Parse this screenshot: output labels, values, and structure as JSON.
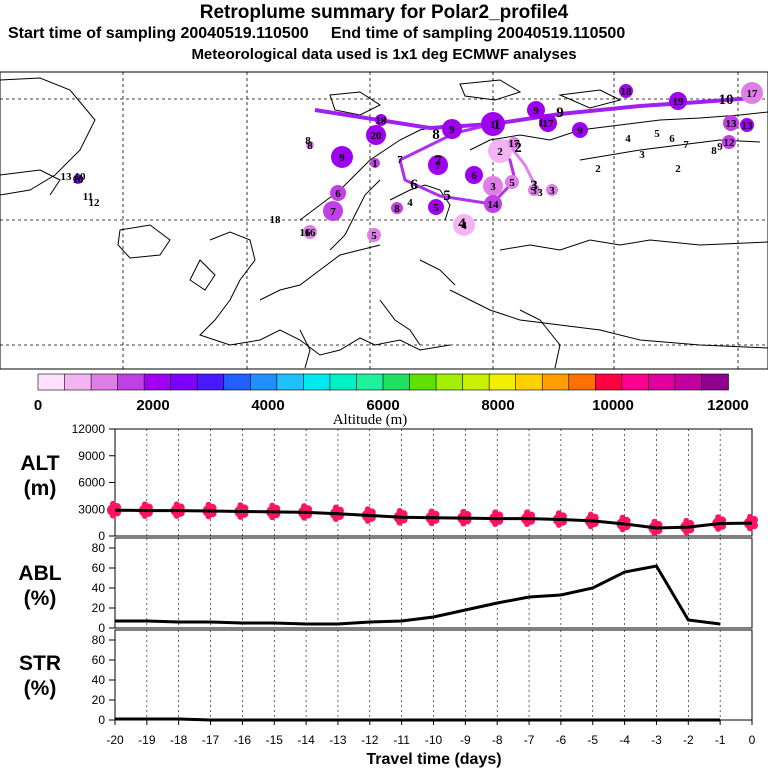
{
  "header": {
    "title": "Retroplume summary for Polar2_profile4",
    "start_label": "Start time of sampling 20040519.110500",
    "end_label": "End time of sampling 20040519.110500",
    "met_label": "Meteorological data used is 1x1 deg ECMWF analyses"
  },
  "colorbar": {
    "tick_labels": [
      "0",
      "2000",
      "4000",
      "6000",
      "8000",
      "10000",
      "12000"
    ],
    "title": "Altitude (m)",
    "range": [
      0,
      12000
    ],
    "colors": [
      "#ffe0ff",
      "#f4b4f4",
      "#e07ee8",
      "#c040e6",
      "#a000f0",
      "#7f00ff",
      "#4a1aff",
      "#2060ff",
      "#2090ff",
      "#20c0ff",
      "#00e8f0",
      "#00f0c8",
      "#20f0a0",
      "#20e060",
      "#60e000",
      "#a0f000",
      "#c8f000",
      "#f0f000",
      "#ffd000",
      "#ffa000",
      "#ff7000",
      "#ff0040",
      "#ff0090",
      "#e000a0",
      "#c000a0",
      "#900090"
    ],
    "value_step_m": 470
  },
  "map": {
    "track_labels": [
      "1",
      "2",
      "3",
      "4",
      "5",
      "6",
      "7",
      "8",
      "9",
      "10"
    ],
    "cluster_labels": [
      "1",
      "2",
      "3",
      "4",
      "5",
      "6",
      "7",
      "8",
      "9",
      "10",
      "11",
      "12",
      "13",
      "14",
      "15",
      "16",
      "17",
      "18",
      "19",
      "20"
    ],
    "clusters": [
      {
        "label": "17",
        "lon_pos": "far-east",
        "alt": 1400
      },
      {
        "label": "9",
        "lon_pos": "east",
        "alt": 1900
      },
      {
        "label": "20",
        "lon_pos": "central",
        "alt": 2900
      },
      {
        "label": "2",
        "lon_pos": "central",
        "alt": 900
      },
      {
        "label": "4",
        "lon_pos": "central",
        "alt": 800
      }
    ]
  },
  "chart_data": [
    {
      "type": "line",
      "title": "ALT (m)",
      "ylabel": "ALT (m)",
      "y_tick_labels": [
        "0",
        "3000",
        "6000",
        "9000",
        "12000"
      ],
      "ylim": [
        0,
        12000
      ],
      "x": [
        -20,
        -19,
        -18,
        -17,
        -16,
        -15,
        -14,
        -13,
        -12,
        -11,
        -10,
        -9,
        -8,
        -7,
        -6,
        -5,
        -4,
        -3,
        -2,
        -1,
        0
      ],
      "values": [
        2900,
        2850,
        2850,
        2800,
        2750,
        2700,
        2650,
        2500,
        2300,
        2100,
        2050,
        2000,
        1950,
        1950,
        1850,
        1700,
        1350,
        900,
        1000,
        1400,
        1450
      ]
    },
    {
      "type": "line",
      "title": "ABL (%)",
      "ylabel": "ABL (%)",
      "y_tick_labels": [
        "0",
        "20",
        "40",
        "60",
        "80"
      ],
      "ylim": [
        0,
        90
      ],
      "x": [
        -20,
        -19,
        -18,
        -17,
        -16,
        -15,
        -14,
        -13,
        -12,
        -11,
        -10,
        -9,
        -8,
        -7,
        -6,
        -5,
        -4,
        -3,
        -2,
        -1
      ],
      "values": [
        7,
        7,
        6,
        6,
        5,
        5,
        4,
        4,
        6,
        7,
        11,
        18,
        25,
        31,
        33,
        40,
        56,
        62,
        8,
        4
      ]
    },
    {
      "type": "line",
      "title": "STR (%)",
      "ylabel": "STR (%)",
      "y_tick_labels": [
        "0",
        "20",
        "40",
        "60",
        "80"
      ],
      "ylim": [
        0,
        90
      ],
      "x": [
        -20,
        -19,
        -18,
        -17,
        -16,
        -15,
        -14,
        -13,
        -12,
        -11,
        -10,
        -9,
        -8,
        -7,
        -6,
        -5,
        -4,
        -3,
        -2,
        -1
      ],
      "values": [
        1,
        1,
        1,
        0,
        0,
        0,
        0,
        0,
        0,
        0,
        0,
        0,
        0,
        0,
        0,
        0,
        0,
        0,
        0,
        0
      ],
      "xlabel": "Travel time (days)",
      "x_tick_labels": [
        "-20",
        "-19",
        "-18",
        "-17",
        "-16",
        "-15",
        "-14",
        "-13",
        "-12",
        "-11",
        "-10",
        "-9",
        "-8",
        "-7",
        "-6",
        "-5",
        "-4",
        "-3",
        "-2",
        "-1",
        "0"
      ]
    }
  ],
  "panel_labels": {
    "alt": [
      "ALT",
      "(m)"
    ],
    "abl": [
      "ABL",
      "(%)"
    ],
    "str": [
      "STR",
      "(%)"
    ]
  }
}
